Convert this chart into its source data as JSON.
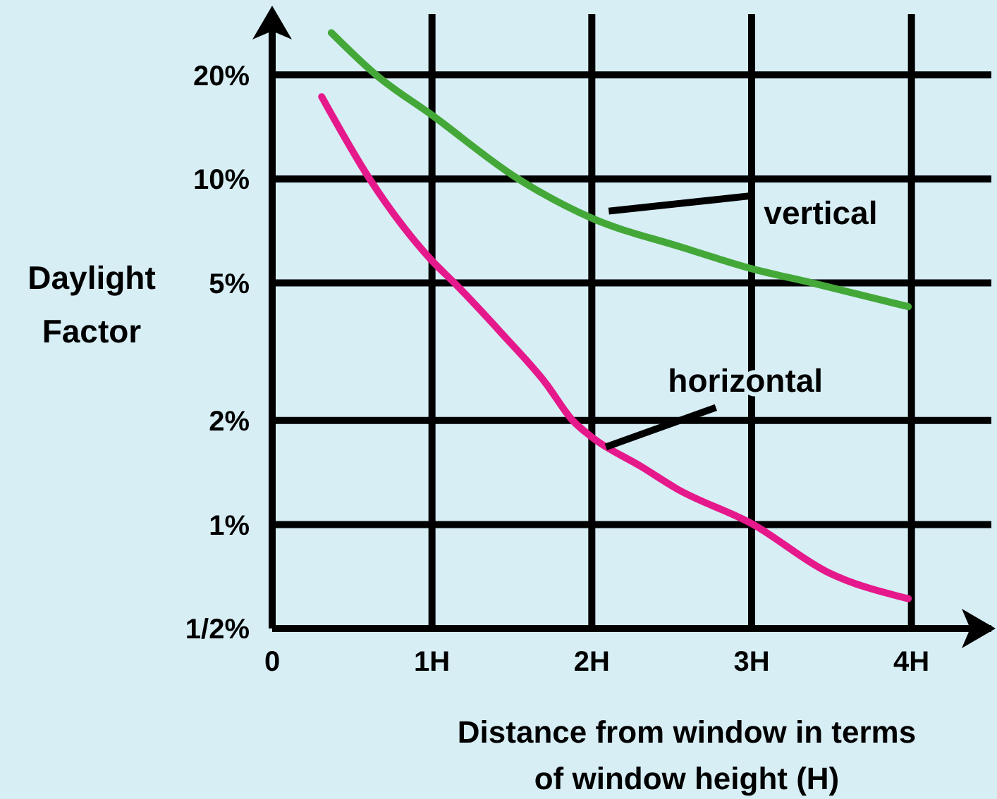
{
  "chart_data": {
    "type": "line",
    "xlabel": "Distance from window in terms of window height (H)",
    "ylabel": "Daylight Factor",
    "xlim": [
      0,
      4.5
    ],
    "xticks": [
      0,
      {
        "value": 1,
        "label": "1H"
      },
      {
        "value": 2,
        "label": "2H"
      },
      {
        "value": 3,
        "label": "3H"
      },
      {
        "value": 4,
        "label": "4H"
      }
    ],
    "ylim": [
      0.5,
      30
    ],
    "yticks": [
      {
        "value": 0.5,
        "label": "1/2%"
      },
      {
        "value": 1,
        "label": "1%"
      },
      {
        "value": 2,
        "label": "2%"
      },
      {
        "value": 5,
        "label": "5%"
      },
      {
        "value": 10,
        "label": "10%"
      },
      {
        "value": 20,
        "label": "20%"
      }
    ],
    "log": "y",
    "grid": true,
    "marker": "none",
    "line_style": "solid",
    "series": [
      {
        "name": "vertical",
        "color": "#44a839",
        "x": [
          0.37,
          0.65,
          1,
          1.54,
          2,
          2.56,
          3,
          3.38,
          3.98
        ],
        "values": [
          26.5,
          20,
          15.3,
          10,
          7.7,
          6.35,
          5.5,
          5,
          4.27
        ]
      },
      {
        "name": "horizontal",
        "color": "#e5198b",
        "x": [
          0.31,
          0.61,
          1,
          1.14,
          1.43,
          1.71,
          1.88,
          2,
          2.31,
          2.53,
          3.01,
          3.47,
          3.98
        ],
        "values": [
          17.3,
          10,
          5.8,
          5,
          3.6,
          2.57,
          2,
          1.79,
          1.47,
          1.27,
          1,
          0.73,
          0.61
        ]
      }
    ]
  }
}
